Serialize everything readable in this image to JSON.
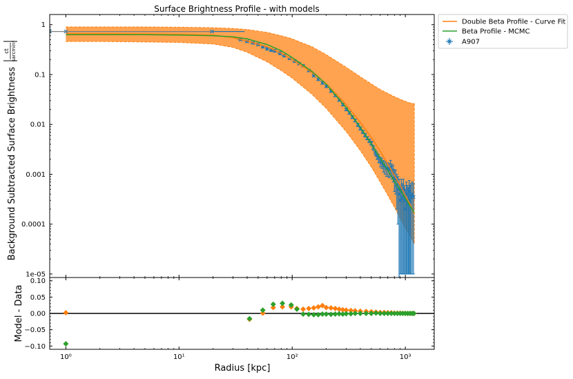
{
  "chart_data": [
    {
      "type": "line",
      "title": "Surface Brightness Profile - with models",
      "ylabel": "Background Subtracted Surface Brightness",
      "ylabel_unit_num": "ct",
      "ylabel_unit_den": "sarcmin²",
      "xscale": "log",
      "yscale": "log",
      "xlim": [
        0.72,
        1800
      ],
      "ylim": [
        8.5e-06,
        1.6
      ],
      "yticks": [
        {
          "value": 1,
          "label": "1"
        },
        {
          "value": 0.1,
          "label": "0.1"
        },
        {
          "value": 0.01,
          "label": "0.01"
        },
        {
          "value": 0.001,
          "label": "0.001"
        },
        {
          "value": 0.0001,
          "label": "0.0001"
        },
        {
          "value": 1e-05,
          "label": "1e-05"
        }
      ],
      "legend_position": "outside-top-right",
      "legend": [
        {
          "label": "Double Beta Profile - Curve Fit",
          "color": "#ff7f0e",
          "marker": "line"
        },
        {
          "label": "Beta Profile - MCMC",
          "color": "#2ca02c",
          "marker": "line"
        },
        {
          "label": "A907",
          "color": "#1f77b4",
          "marker": "errorbar-x"
        }
      ],
      "series": [
        {
          "name": "A907",
          "color": "#1f77b4",
          "x": [
            0.72,
            1.0,
            19.5,
            35,
            40,
            45,
            50,
            55,
            60,
            65,
            70,
            78,
            85,
            95,
            105,
            115,
            125,
            140,
            155,
            170,
            185,
            200,
            220,
            240,
            260,
            280,
            300,
            320,
            340,
            360,
            380,
            400,
            420,
            440,
            460,
            480,
            500,
            520,
            540,
            560,
            580,
            600,
            620,
            640,
            660,
            680,
            700,
            720,
            740,
            760,
            780,
            800,
            820,
            840,
            860,
            880,
            900,
            920,
            940,
            960,
            980,
            1000,
            1020,
            1040,
            1060,
            1080,
            1100,
            1120,
            1150,
            1180
          ],
          "y": [
            0.73,
            0.73,
            0.73,
            0.5,
            0.46,
            0.43,
            0.4,
            0.36,
            0.33,
            0.31,
            0.3,
            0.27,
            0.24,
            0.21,
            0.185,
            0.165,
            0.15,
            0.12,
            0.095,
            0.08,
            0.068,
            0.058,
            0.047,
            0.038,
            0.031,
            0.025,
            0.02,
            0.017,
            0.014,
            0.012,
            0.0098,
            0.0083,
            0.0071,
            0.0061,
            0.0053,
            0.0047,
            0.0042,
            0.0034,
            0.0028,
            0.0024,
            0.0021,
            0.0018,
            0.0017,
            0.0015,
            0.0014,
            0.0013,
            0.0013,
            0.00125,
            0.0014,
            0.0012,
            0.0011,
            0.00085,
            0.0008,
            0.0006,
            0.0005,
            0.0004,
            0.0003,
            0.0005,
            0.00035,
            0.0005,
            0.0003,
            0.0002,
            0.0004,
            0.0003,
            0.00025,
            0.00045,
            0.0003,
            0.00035,
            0.0004,
            0.00035
          ],
          "xerr_lo": [
            0.0,
            0.0,
            18.5,
            2,
            2,
            2,
            2,
            2,
            2,
            2,
            4,
            4,
            4,
            4,
            4,
            4,
            4,
            4,
            4,
            4,
            4,
            4,
            4,
            4,
            4,
            4,
            4,
            4,
            4,
            4,
            4,
            4,
            4,
            4,
            4,
            4,
            4,
            4,
            4,
            4,
            4,
            4,
            4,
            4,
            4,
            4,
            4,
            4,
            4,
            4,
            4,
            4,
            4,
            4,
            4,
            4,
            4,
            4,
            4,
            4,
            4,
            4,
            4,
            4,
            4,
            4,
            4,
            4,
            4,
            4
          ],
          "yerr_lo": [
            0.0,
            0.0,
            0.0,
            0.02,
            0.02,
            0.02,
            0.02,
            0.02,
            0.02,
            0.02,
            0.02,
            0.02,
            0.015,
            0.01,
            0.01,
            0.008,
            0.008,
            0.006,
            0.005,
            0.004,
            0.004,
            0.003,
            0.003,
            0.002,
            0.002,
            0.0015,
            0.0012,
            0.001,
            0.0009,
            0.0008,
            0.0007,
            0.0006,
            0.0005,
            0.0005,
            0.0004,
            0.0004,
            0.0004,
            0.0004,
            0.0004,
            0.0004,
            0.0004,
            0.0004,
            0.0004,
            0.0004,
            0.0004,
            0.0004,
            0.0004,
            0.0004,
            0.0005,
            0.0004,
            0.0004,
            0.0004,
            0.0004,
            0.0004,
            0.0004,
            0.0004,
            0.00029,
            0.00049,
            0.00034,
            0.00049,
            0.00029,
            0.00019,
            0.00039,
            0.00029,
            0.00024,
            0.00044,
            0.00029,
            0.00034,
            0.00039,
            0.00034
          ],
          "yerr_hi": [
            0.0,
            0.0,
            0.0,
            0.02,
            0.02,
            0.02,
            0.02,
            0.02,
            0.02,
            0.02,
            0.02,
            0.02,
            0.015,
            0.01,
            0.01,
            0.008,
            0.008,
            0.006,
            0.005,
            0.004,
            0.004,
            0.003,
            0.003,
            0.002,
            0.002,
            0.0015,
            0.0012,
            0.001,
            0.0009,
            0.0008,
            0.0007,
            0.0006,
            0.0005,
            0.0005,
            0.0004,
            0.0004,
            0.0004,
            0.0004,
            0.0004,
            0.0004,
            0.0004,
            0.0004,
            0.0004,
            0.0004,
            0.0004,
            0.0004,
            0.0004,
            0.0004,
            0.0005,
            0.0004,
            0.0004,
            0.0004,
            0.0004,
            0.0004,
            0.0004,
            0.0004,
            0.0003,
            0.0003,
            0.0003,
            0.0003,
            0.0003,
            0.0003,
            0.0003,
            0.0003,
            0.0003,
            0.0003,
            0.0003,
            0.0003,
            0.0003,
            0.0003
          ]
        },
        {
          "name": "Double Beta Profile - Curve Fit",
          "color": "#ff7f0e",
          "x": [
            1,
            2,
            5,
            10,
            20,
            30,
            40,
            60,
            80,
            100,
            150,
            200,
            300,
            400,
            500,
            600,
            700,
            800,
            900,
            1000,
            1100,
            1200
          ],
          "y": [
            0.66,
            0.66,
            0.65,
            0.64,
            0.62,
            0.55,
            0.47,
            0.36,
            0.27,
            0.2,
            0.11,
            0.065,
            0.025,
            0.011,
            0.0055,
            0.0029,
            0.0016,
            0.00095,
            0.0006,
            0.00038,
            0.00025,
            0.00016
          ],
          "band_upper": [
            0.9,
            0.9,
            0.9,
            0.89,
            0.87,
            0.84,
            0.8,
            0.7,
            0.6,
            0.52,
            0.36,
            0.25,
            0.14,
            0.09,
            0.065,
            0.05,
            0.042,
            0.036,
            0.032,
            0.029,
            0.027,
            0.026
          ],
          "band_lower": [
            0.46,
            0.46,
            0.45,
            0.44,
            0.41,
            0.35,
            0.28,
            0.18,
            0.12,
            0.085,
            0.04,
            0.021,
            0.0072,
            0.003,
            0.0014,
            0.0007,
            0.00038,
            0.00022,
            0.00013,
            8.5e-05,
            5.8e-05,
            4e-05
          ]
        },
        {
          "name": "Beta Profile - MCMC",
          "color": "#2ca02c",
          "x": [
            1,
            2,
            5,
            10,
            20,
            30,
            40,
            60,
            80,
            100,
            150,
            200,
            300,
            400,
            500,
            600,
            700,
            800,
            900,
            1000,
            1100,
            1200
          ],
          "y": [
            0.63,
            0.63,
            0.63,
            0.62,
            0.6,
            0.57,
            0.52,
            0.4,
            0.3,
            0.22,
            0.115,
            0.064,
            0.022,
            0.0088,
            0.0041,
            0.0021,
            0.0012,
            0.00073,
            0.00048,
            0.00033,
            0.00023,
            0.00017
          ]
        }
      ]
    },
    {
      "type": "scatter",
      "xlabel": "Radius [kpc]",
      "ylabel": "Model - Data",
      "xscale": "log",
      "xlim": [
        0.72,
        1800
      ],
      "ylim": [
        -0.11,
        0.11
      ],
      "xticks": [
        {
          "value": 1,
          "label": "10⁰"
        },
        {
          "value": 10,
          "label": "10¹"
        },
        {
          "value": 100,
          "label": "10²"
        },
        {
          "value": 1000,
          "label": "10³"
        }
      ],
      "yticks": [
        {
          "value": 0.1,
          "label": "0.10"
        },
        {
          "value": 0.05,
          "label": "0.05"
        },
        {
          "value": 0.0,
          "label": "0.00"
        },
        {
          "value": -0.05,
          "label": "−0.05"
        },
        {
          "value": -0.1,
          "label": "−0.10"
        }
      ],
      "hline": 0.0,
      "series": [
        {
          "name": "Double Beta Profile - Curve Fit",
          "color": "#ff7f0e",
          "x": [
            1.0,
            42,
            55,
            68,
            82,
            98,
            110,
            125,
            140,
            155,
            170,
            185,
            200,
            220,
            240,
            260,
            280,
            300,
            330,
            360,
            400,
            450,
            500,
            550,
            600,
            650,
            700,
            750,
            800,
            850,
            900,
            950,
            1000,
            1050,
            1100,
            1150,
            1190
          ],
          "y": [
            0.002,
            -0.018,
            0.001,
            0.018,
            0.02,
            0.02,
            0.015,
            0.013,
            0.015,
            0.017,
            0.02,
            0.024,
            0.018,
            0.017,
            0.015,
            0.013,
            0.011,
            0.01,
            0.009,
            0.008,
            0.007,
            0.006,
            0.005,
            0.004,
            0.003,
            0.003,
            0.002,
            0.002,
            0.001,
            0.001,
            0.001,
            0.0005,
            0.0005,
            0.0,
            0.0,
            0.0,
            0.0
          ]
        },
        {
          "name": "Beta Profile - MCMC",
          "color": "#2ca02c",
          "x": [
            1.0,
            42,
            55,
            68,
            82,
            98,
            110,
            125,
            140,
            155,
            170,
            185,
            200,
            220,
            240,
            260,
            280,
            300,
            330,
            360,
            400,
            450,
            500,
            550,
            600,
            650,
            700,
            750,
            800,
            850,
            900,
            950,
            1000,
            1050,
            1100,
            1150,
            1190
          ],
          "y": [
            -0.093,
            -0.016,
            0.01,
            0.028,
            0.031,
            0.026,
            0.013,
            -0.002,
            -0.003,
            -0.004,
            -0.004,
            -0.002,
            -0.002,
            -0.003,
            -0.002,
            -0.001,
            -0.002,
            -0.001,
            -0.001,
            0.0,
            0.0,
            0.0,
            0.0,
            0.001,
            0.0,
            0.0,
            0.0,
            0.0,
            0.0,
            0.0,
            0.0,
            0.0,
            0.0,
            0.0,
            0.0,
            0.0,
            0.0
          ]
        }
      ]
    }
  ]
}
